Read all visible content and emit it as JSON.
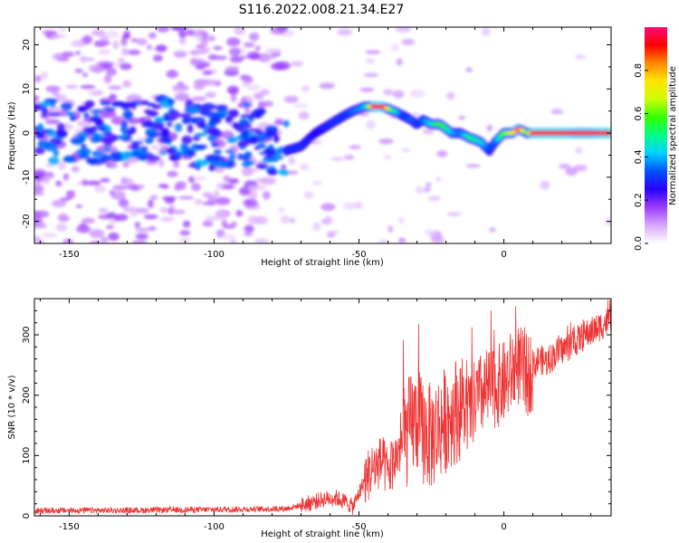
{
  "title": "S116.2022.008.21.34.E27",
  "chart_data": [
    {
      "type": "heatmap",
      "xlabel": "Height of straight line (km)",
      "ylabel": "Frequency (Hz)",
      "xlim": [
        -162,
        37
      ],
      "ylim": [
        -25,
        24
      ],
      "xticks": [
        -150,
        -100,
        -50,
        0
      ],
      "yticks": [
        -20,
        -10,
        0,
        10,
        20
      ],
      "colorbar": {
        "label": "Normalized spectral amplitude",
        "range": [
          0,
          1
        ],
        "ticks": [
          "0.0",
          "0.2",
          "0.4",
          "0.6",
          "0.8"
        ],
        "colormap": [
          "#ffffff",
          "#d9a9ff",
          "#9b3cff",
          "#2a00ff",
          "#0052ff",
          "#00d0ff",
          "#00ff88",
          "#33ff00",
          "#ccff00",
          "#ffe600",
          "#ff8800",
          "#ff0000",
          "#ff0a78"
        ]
      },
      "ridge": {
        "x": [
          -162,
          -140,
          -120,
          -100,
          -90,
          -80,
          -75,
          -70,
          -65,
          -60,
          -55,
          -52,
          -48,
          -45,
          -42,
          -38,
          -35,
          -32,
          -30,
          -28,
          -25,
          -22,
          -18,
          -15,
          -12,
          -8,
          -5,
          -3,
          0,
          3,
          5,
          8,
          10,
          15,
          20,
          25,
          30,
          35
        ],
        "y": [
          1,
          0,
          1,
          -1,
          0,
          -2,
          -4,
          -3,
          0,
          2,
          4,
          5,
          6,
          6,
          6,
          5,
          4,
          3,
          2,
          3,
          2,
          2,
          0,
          0,
          -1,
          -2,
          -4,
          -2,
          0,
          0,
          1,
          0,
          0,
          0,
          0,
          0,
          0,
          0
        ],
        "amplitude": [
          0.35,
          0.35,
          0.4,
          0.35,
          0.35,
          0.35,
          0.3,
          0.3,
          0.25,
          0.3,
          0.3,
          0.35,
          0.4,
          0.9,
          0.95,
          0.5,
          0.3,
          0.35,
          0.3,
          0.35,
          0.45,
          0.6,
          0.4,
          0.35,
          0.5,
          0.45,
          0.3,
          0.35,
          0.6,
          0.7,
          0.9,
          0.55,
          0.95,
          0.95,
          0.95,
          0.9,
          0.9,
          0.95
        ]
      }
    },
    {
      "type": "line",
      "xlabel": "Height of straight line (km)",
      "ylabel": "SNR (10 * v/v)",
      "xlim": [
        -162,
        37
      ],
      "ylim": [
        0,
        360
      ],
      "xticks": [
        -150,
        -100,
        -50,
        0
      ],
      "yticks": [
        0,
        100,
        200,
        300
      ],
      "series": [
        {
          "color": "#ee3333",
          "x": [
            -162,
            -150,
            -130,
            -110,
            -90,
            -75,
            -68,
            -62,
            -58,
            -55,
            -52,
            -48,
            -45,
            -42,
            -40,
            -38,
            -35,
            -32,
            -30,
            -28,
            -25,
            -22,
            -20,
            -18,
            -15,
            -12,
            -10,
            -8,
            -5,
            -2,
            0,
            3,
            5,
            8,
            10,
            12,
            15,
            18,
            20,
            22,
            25,
            28,
            30,
            32,
            35,
            37
          ],
          "y": [
            8,
            9,
            9,
            10,
            11,
            12,
            20,
            28,
            30,
            24,
            15,
            60,
            80,
            90,
            70,
            90,
            120,
            150,
            160,
            140,
            130,
            150,
            160,
            170,
            180,
            170,
            190,
            200,
            210,
            215,
            220,
            240,
            250,
            230,
            245,
            260,
            255,
            270,
            275,
            280,
            290,
            300,
            305,
            310,
            320,
            325
          ]
        }
      ]
    }
  ]
}
